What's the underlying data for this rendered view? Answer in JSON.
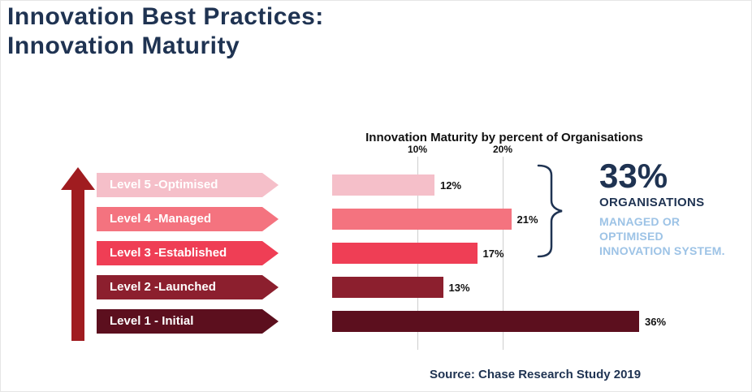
{
  "title": {
    "line1": "Innovation Best Practices:",
    "line2": "Innovation Maturity"
  },
  "chart_data": {
    "type": "bar",
    "orientation": "horizontal",
    "title": "Innovation Maturity by percent of Organisations",
    "categories": [
      "Level 5 -Optimised",
      "Level 4 -Managed",
      "Level 3 -Established",
      "Level 2 -Launched",
      "Level 1 - Initial"
    ],
    "values": [
      12,
      21,
      17,
      13,
      36
    ],
    "value_labels": [
      "12%",
      "21%",
      "17%",
      "13%",
      "36%"
    ],
    "axis_ticks": [
      "10%",
      "20%"
    ],
    "tick_values": [
      10,
      20
    ],
    "xlim": [
      0,
      40
    ],
    "grid": true,
    "colors": [
      "#F5BFC9",
      "#F4737F",
      "#EF3E55",
      "#8C1F2E",
      "#5C0F1E"
    ]
  },
  "annotation": {
    "value": "33%",
    "label": "ORGANISATIONS",
    "detail": "MANAGED OR OPTIMISED INNOVATION SYSTEM."
  },
  "source": "Source: Chase Research Study  2019",
  "colors": {
    "navy": "#1F3352",
    "light_blue": "#9DC3E6",
    "arrow_red": "#A01C20",
    "gridline": "#cfcfcf"
  }
}
